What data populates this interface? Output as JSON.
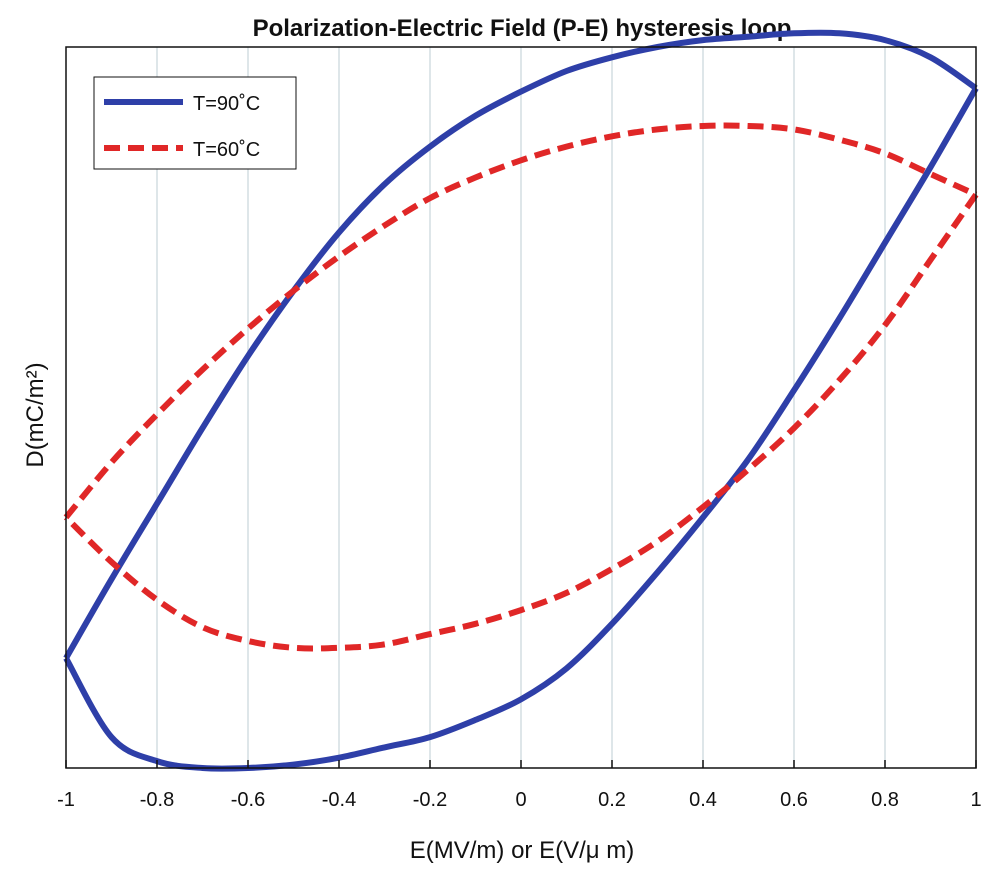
{
  "chart_data": {
    "type": "line",
    "title": "Polarization-Electric Field (P-E) hysteresis loop",
    "xlabel": "E(MV/m) or E(V/μ m)",
    "ylabel": "D(mC/m²)",
    "xlim": [
      -1,
      1
    ],
    "ylim": [
      -1.05,
      1.05
    ],
    "xticks": [
      -1,
      -0.8,
      -0.6,
      -0.4,
      -0.2,
      0,
      0.2,
      0.4,
      0.6,
      0.8,
      1
    ],
    "xtick_labels": [
      "-1",
      "-0.8",
      "-0.6",
      "-0.4",
      "-0.2",
      "0",
      "0.2",
      "0.4",
      "0.6",
      "0.8",
      "1"
    ],
    "grid": "vertical",
    "legend_position": "top-left",
    "series": [
      {
        "name": "T=90˚C",
        "color": "#2e3fa8",
        "style": "solid",
        "branches": [
          {
            "x": [
              -1,
              -0.9,
              -0.8,
              -0.7,
              -0.6,
              -0.5,
              -0.4,
              -0.3,
              -0.2,
              -0.1,
              0,
              0.1,
              0.2,
              0.3,
              0.4,
              0.5,
              0.6,
              0.7,
              0.8,
              0.9,
              1
            ],
            "y": [
              -0.73,
              -0.5,
              -0.28,
              -0.06,
              0.15,
              0.34,
              0.51,
              0.65,
              0.76,
              0.85,
              0.92,
              0.98,
              1.02,
              1.05,
              1.07,
              1.08,
              1.09,
              1.09,
              1.07,
              1.02,
              0.93
            ]
          },
          {
            "x": [
              1,
              0.9,
              0.8,
              0.7,
              0.6,
              0.5,
              0.4,
              0.3,
              0.2,
              0.1,
              0,
              -0.1,
              -0.2,
              -0.3,
              -0.4,
              -0.5,
              -0.6,
              -0.7,
              -0.8,
              -0.9,
              -1
            ],
            "y": [
              0.93,
              0.7,
              0.48,
              0.26,
              0.05,
              -0.15,
              -0.32,
              -0.48,
              -0.63,
              -0.76,
              -0.85,
              -0.91,
              -0.96,
              -0.99,
              -1.02,
              -1.04,
              -1.05,
              -1.05,
              -1.03,
              -0.96,
              -0.73
            ]
          }
        ]
      },
      {
        "name": "T=60˚C",
        "color": "#e02727",
        "style": "dashed",
        "branches": [
          {
            "x": [
              -1,
              -0.9,
              -0.8,
              -0.7,
              -0.6,
              -0.5,
              -0.4,
              -0.3,
              -0.2,
              -0.1,
              0,
              0.1,
              0.2,
              0.3,
              0.4,
              0.5,
              0.6,
              0.7,
              0.8,
              0.9,
              1
            ],
            "y": [
              -0.32,
              -0.16,
              -0.02,
              0.11,
              0.23,
              0.34,
              0.44,
              0.53,
              0.61,
              0.67,
              0.72,
              0.76,
              0.79,
              0.81,
              0.82,
              0.82,
              0.81,
              0.78,
              0.74,
              0.68,
              0.62
            ]
          },
          {
            "x": [
              1,
              0.9,
              0.8,
              0.7,
              0.6,
              0.5,
              0.4,
              0.3,
              0.2,
              0.1,
              0,
              -0.1,
              -0.2,
              -0.3,
              -0.4,
              -0.5,
              -0.6,
              -0.7,
              -0.8,
              -0.9,
              -1
            ],
            "y": [
              0.62,
              0.43,
              0.24,
              0.08,
              -0.06,
              -0.18,
              -0.29,
              -0.39,
              -0.47,
              -0.54,
              -0.59,
              -0.63,
              -0.66,
              -0.69,
              -0.7,
              -0.7,
              -0.68,
              -0.64,
              -0.56,
              -0.45,
              -0.32
            ]
          }
        ]
      }
    ]
  }
}
